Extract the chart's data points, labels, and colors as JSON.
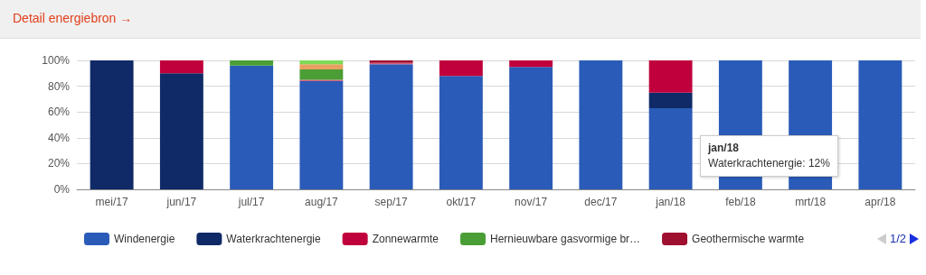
{
  "chart_data": {
    "type": "bar",
    "title": "Detail energiebron →",
    "stacked": true,
    "grid": "y",
    "legend": "bottom",
    "categories": [
      "mei/17",
      "jun/17",
      "jul/17",
      "aug/17",
      "sep/17",
      "okt/17",
      "nov/17",
      "dec/17",
      "jan/18",
      "feb/18",
      "mrt/18",
      "apr/18"
    ],
    "ylim": [
      0,
      100
    ],
    "yticks": [
      {
        "value": 0,
        "label": "0%"
      },
      {
        "value": 20,
        "label": "20%"
      },
      {
        "value": 40,
        "label": "40%"
      },
      {
        "value": 60,
        "label": "60%"
      },
      {
        "value": 80,
        "label": "80%"
      },
      {
        "value": 100,
        "label": "100%"
      }
    ],
    "series": [
      {
        "name": "Windenergie",
        "color": "#2a5bb8",
        "values": [
          null,
          null,
          96,
          84,
          97,
          88,
          95,
          100,
          63,
          100,
          100,
          100
        ]
      },
      {
        "name": "Waterkrachtenergie",
        "color": "#0f2a66",
        "values": [
          100,
          90,
          null,
          null,
          null,
          null,
          null,
          null,
          12,
          null,
          null,
          null
        ]
      },
      {
        "color": "#d8607f",
        "values": [
          null,
          null,
          null,
          1,
          1,
          null,
          null,
          null,
          null,
          null,
          null,
          null
        ]
      },
      {
        "name": "Zonnewarmte",
        "color": "#c0003c",
        "values": [
          null,
          10,
          null,
          null,
          null,
          12,
          5,
          null,
          25,
          null,
          null,
          null
        ]
      },
      {
        "name": "Hernieuwbare gasvormige br…",
        "color": "#4a9e35",
        "values": [
          null,
          null,
          4,
          8,
          null,
          null,
          null,
          null,
          null,
          null,
          null,
          null
        ]
      },
      {
        "color": "#e8a060",
        "values": [
          null,
          null,
          null,
          4,
          null,
          null,
          null,
          null,
          null,
          null,
          null,
          null
        ]
      },
      {
        "color": "#7ed957",
        "values": [
          null,
          null,
          null,
          3,
          null,
          null,
          null,
          null,
          null,
          null,
          null,
          null
        ]
      },
      {
        "name": "Geothermische warmte",
        "color": "#9e0f30",
        "values": [
          null,
          null,
          null,
          null,
          2,
          null,
          null,
          null,
          null,
          null,
          null,
          null
        ]
      }
    ],
    "annotations": [
      "jan/18\nWaterkrachtenergie: 12%",
      "1/2"
    ]
  }
}
